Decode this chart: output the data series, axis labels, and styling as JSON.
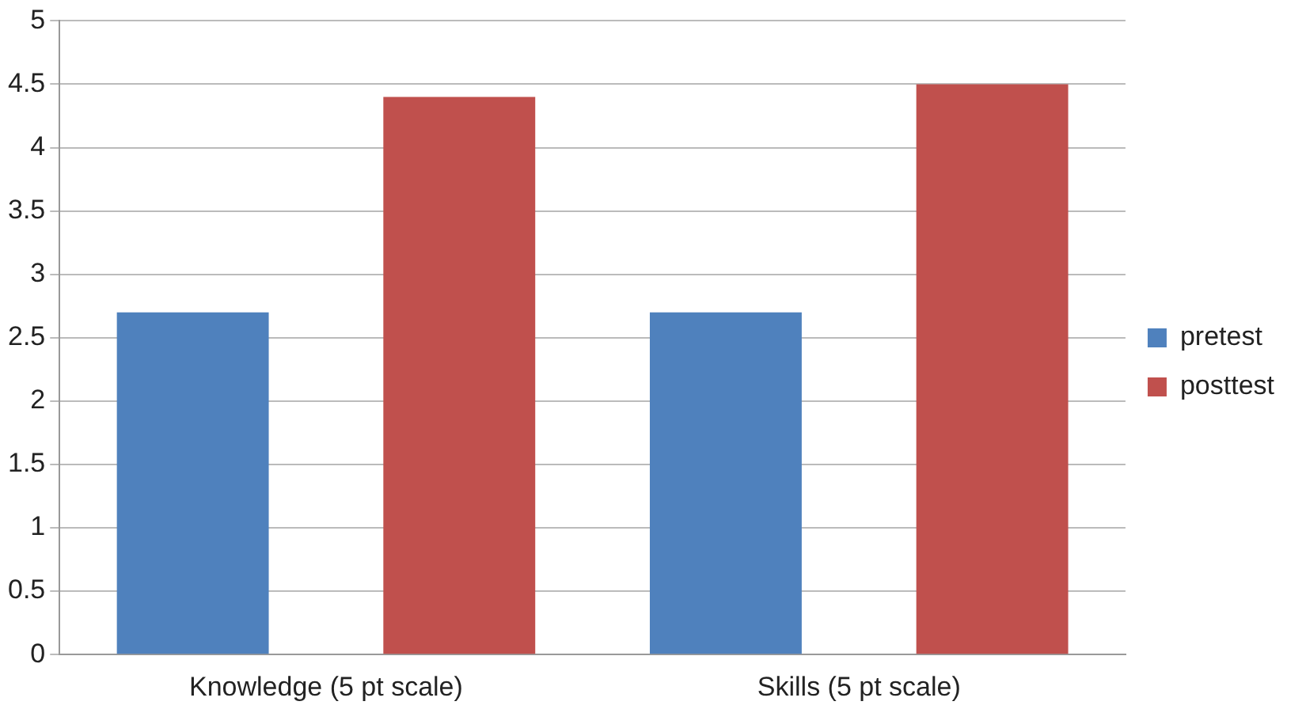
{
  "chart_data": {
    "type": "bar",
    "categories": [
      "Knowledge (5 pt scale)",
      "Skills (5 pt scale)"
    ],
    "series": [
      {
        "name": "pretest",
        "color": "#4f81bd",
        "values": [
          2.7,
          2.7
        ]
      },
      {
        "name": "posttest",
        "color": "#c0504d",
        "values": [
          4.4,
          4.5
        ]
      }
    ],
    "ylim": [
      0,
      5
    ],
    "yticks": [
      0,
      0.5,
      1,
      1.5,
      2,
      2.5,
      3,
      3.5,
      4,
      4.5,
      5
    ],
    "grid": "y",
    "legend": "right"
  }
}
